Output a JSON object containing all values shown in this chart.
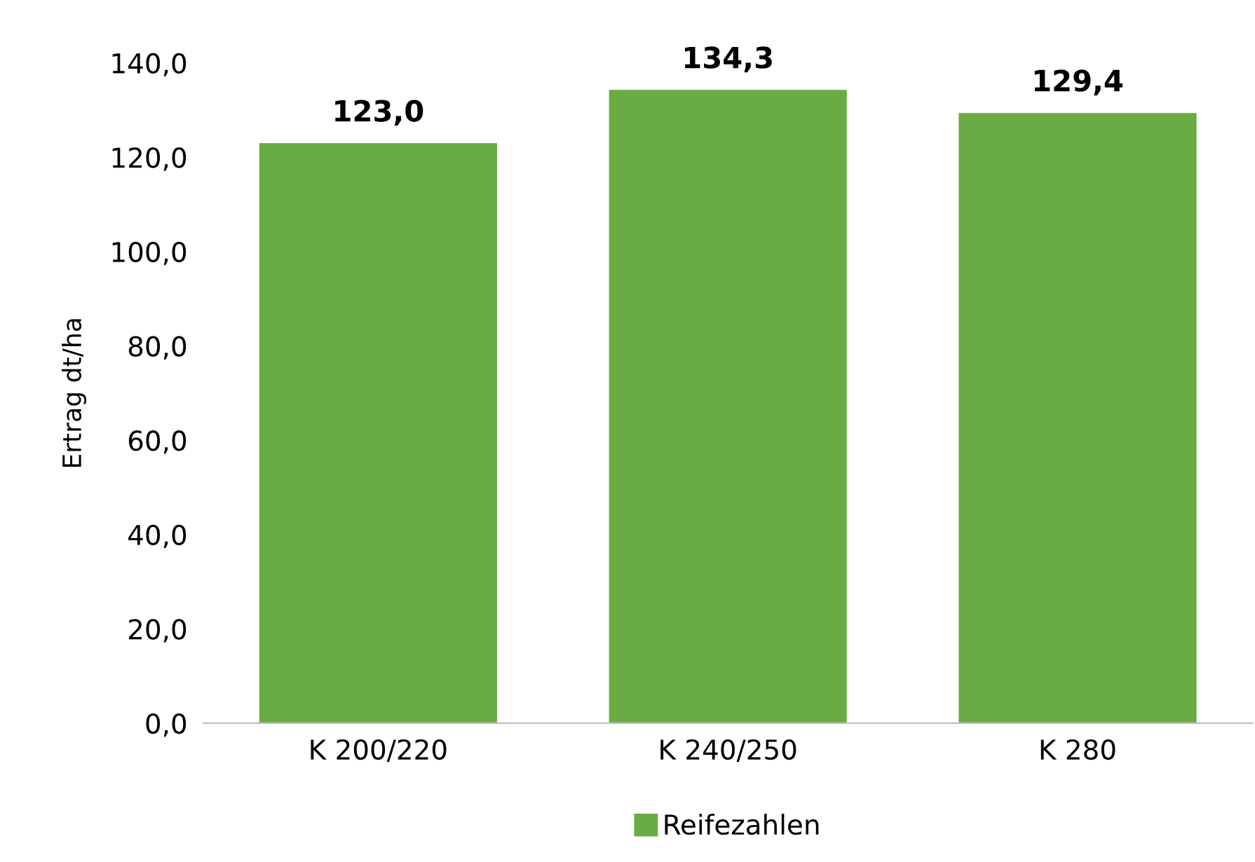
{
  "chart_data": {
    "type": "bar",
    "ylabel": "Ertrag dt/ha",
    "categories": [
      "K 200/220",
      "K 240/250",
      "K 280"
    ],
    "series": [
      {
        "name": "Reifezahlen",
        "color": "#6aac44",
        "values": [
          123.0,
          134.3,
          129.4
        ],
        "value_labels": [
          "123,0",
          "134,3",
          "129,4"
        ]
      }
    ],
    "ylim": [
      0,
      140
    ],
    "yticks": [
      {
        "value": 0,
        "label": "0,0"
      },
      {
        "value": 20,
        "label": "20,0"
      },
      {
        "value": 40,
        "label": "40,0"
      },
      {
        "value": 60,
        "label": "60,0"
      },
      {
        "value": 80,
        "label": "80,0"
      },
      {
        "value": 100,
        "label": "100,0"
      },
      {
        "value": 120,
        "label": "120,0"
      },
      {
        "value": 140,
        "label": "140,0"
      }
    ],
    "grid": false,
    "legend": "bottom"
  }
}
